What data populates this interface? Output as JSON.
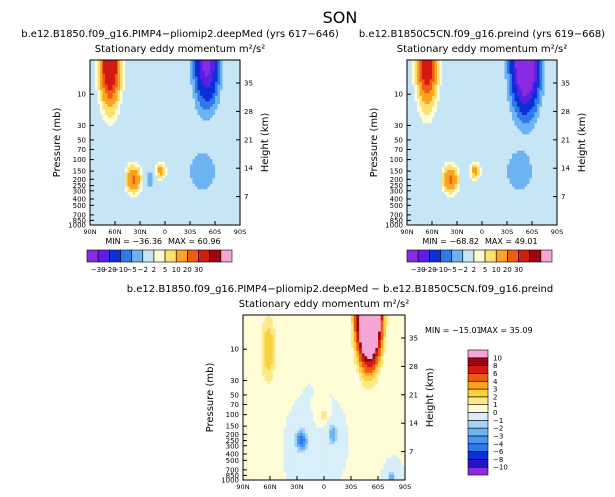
{
  "figure": {
    "title": "SON"
  },
  "colors": {
    "frame": "#000000",
    "text": "#000000"
  },
  "chart_data": [
    {
      "type": "heatmap",
      "title": "b.e12.B1850.f09_g16.PIMP4−pliomip2.deepMed (yrs 617−646)",
      "subtitle": "Stationary eddy momentum",
      "units": "m²/s²",
      "ylabel": "Pressure (mb)",
      "ylabel_right": "Height (km)",
      "x_ticks": [
        "90N",
        "60N",
        "30N",
        "0",
        "30S",
        "60S",
        "90S"
      ],
      "y_ticks": [
        "10",
        "30",
        "50",
        "70",
        "100",
        "150",
        "200",
        "250",
        "300",
        "400",
        "500",
        "700",
        "850",
        "1000"
      ],
      "height_ticks": [
        "35",
        "28",
        "21",
        "14",
        "7"
      ],
      "min_label": "MIN = −36.36",
      "max_label": "MAX = 60.96",
      "levels": [
        -30,
        -20,
        -10,
        -5,
        -2,
        2,
        5,
        10,
        20,
        30
      ],
      "level_labels": [
        "−30",
        "−20",
        "−10",
        "−5",
        "−2",
        "2",
        "5",
        "10",
        "20",
        "30"
      ],
      "colormap": [
        "#8a2be2",
        "#5a1ee6",
        "#0b2fd6",
        "#2f78ea",
        "#6cb3f2",
        "#c6e6f6",
        "#fffcd6",
        "#fde072",
        "#f9a31e",
        "#ef5a14",
        "#d21a12",
        "#9c0610",
        "#f4a6d4"
      ],
      "ylim_mb": [
        1000,
        3
      ],
      "features": [
        {
          "lat": 66,
          "p": 3,
          "amp": 60,
          "width_lat": 10,
          "width_logp": 0.55
        },
        {
          "lat": -50,
          "p": 3,
          "amp": -36,
          "width_lat": 12,
          "width_logp": 0.55
        },
        {
          "lat": 38,
          "p": 200,
          "amp": 22,
          "width_lat": 8,
          "width_logp": 0.18
        },
        {
          "lat": 5,
          "p": 150,
          "amp": 15,
          "width_lat": 5,
          "width_logp": 0.1
        },
        {
          "lat": -45,
          "p": 150,
          "amp": -5,
          "width_lat": 15,
          "width_logp": 0.3
        },
        {
          "lat": 18,
          "p": 200,
          "amp": -3,
          "width_lat": 5,
          "width_logp": 0.2
        },
        {
          "lat": 55,
          "p": 200,
          "amp": -2,
          "width_lat": 6,
          "width_logp": 0.25
        }
      ]
    },
    {
      "type": "heatmap",
      "title": "b.e12.B1850C5CN.f09_g16.preind (yrs 619−668)",
      "subtitle": "Stationary eddy momentum",
      "units": "m²/s²",
      "ylabel": "Pressure (mb)",
      "ylabel_right": "Height (km)",
      "x_ticks": [
        "90N",
        "60N",
        "30N",
        "0",
        "30S",
        "60S",
        "90S"
      ],
      "y_ticks": [
        "10",
        "30",
        "50",
        "70",
        "100",
        "150",
        "200",
        "250",
        "300",
        "400",
        "500",
        "700",
        "850",
        "1000"
      ],
      "height_ticks": [
        "35",
        "28",
        "21",
        "14",
        "7"
      ],
      "min_label": "MIN = −68.82",
      "max_label": "MAX = 49.01",
      "levels": [
        -30,
        -20,
        -10,
        -5,
        -2,
        2,
        5,
        10,
        20,
        30
      ],
      "level_labels": [
        "−30",
        "−20",
        "−10",
        "−5",
        "−2",
        "2",
        "5",
        "10",
        "20",
        "30"
      ],
      "colormap": [
        "#8a2be2",
        "#5a1ee6",
        "#0b2fd6",
        "#2f78ea",
        "#6cb3f2",
        "#c6e6f6",
        "#fffcd6",
        "#fde072",
        "#f9a31e",
        "#ef5a14",
        "#d21a12",
        "#9c0610",
        "#f4a6d4"
      ],
      "ylim_mb": [
        1000,
        3
      ],
      "features": [
        {
          "lat": 66,
          "p": 3,
          "amp": 49,
          "width_lat": 10,
          "width_logp": 0.55
        },
        {
          "lat": -52,
          "p": 3,
          "amp": -68,
          "width_lat": 13,
          "width_logp": 0.6
        },
        {
          "lat": 38,
          "p": 200,
          "amp": 22,
          "width_lat": 8,
          "width_logp": 0.18
        },
        {
          "lat": 8,
          "p": 150,
          "amp": 15,
          "width_lat": 5,
          "width_logp": 0.1
        },
        {
          "lat": -45,
          "p": 150,
          "amp": -5,
          "width_lat": 15,
          "width_logp": 0.3
        },
        {
          "lat": 55,
          "p": 200,
          "amp": -2,
          "width_lat": 6,
          "width_logp": 0.25
        }
      ]
    },
    {
      "type": "heatmap",
      "title": "b.e12.B1850.f09_g16.PIMP4−pliomip2.deepMed − b.e12.B1850C5CN.f09_g16.preind",
      "subtitle": "Stationary eddy momentum",
      "units": "m²/s²",
      "ylabel": "Pressure (mb)",
      "ylabel_right": "Height (km)",
      "x_ticks": [
        "90N",
        "60N",
        "30N",
        "0",
        "30S",
        "60S",
        "90S"
      ],
      "y_ticks": [
        "10",
        "30",
        "50",
        "70",
        "100",
        "150",
        "200",
        "250",
        "300",
        "400",
        "500",
        "700",
        "850",
        "1000"
      ],
      "height_ticks": [
        "35",
        "28",
        "21",
        "14",
        "7"
      ],
      "min_label": "MIN = −15.01",
      "max_label": "MAX = 35.09",
      "levels": [
        -10,
        -8,
        -6,
        -4,
        -3,
        -2,
        -1,
        0,
        1,
        2,
        3,
        4,
        6,
        8,
        10
      ],
      "level_labels": [
        "−10",
        "−8",
        "−6",
        "−4",
        "−3",
        "−2",
        "−1",
        "0",
        "1",
        "2",
        "3",
        "4",
        "6",
        "8",
        "10"
      ],
      "colormap": [
        "#8a2be2",
        "#2a12c8",
        "#0b2fd6",
        "#2f78ea",
        "#4a98ee",
        "#6cb3f2",
        "#a4d4f4",
        "#d8eef8",
        "#fffcd6",
        "#fde98a",
        "#fbd03c",
        "#f9a31e",
        "#ef5a14",
        "#d21a12",
        "#9c0610",
        "#f4a6d4"
      ],
      "ylim_mb": [
        1000,
        3
      ],
      "features": [
        {
          "lat": -50,
          "p": 3,
          "amp": 35,
          "width_lat": 11,
          "width_logp": 0.6
        },
        {
          "lat": 62,
          "p": 10,
          "amp": 3,
          "width_lat": 8,
          "width_logp": 0.5
        },
        {
          "lat": 25,
          "p": 250,
          "amp": -5,
          "width_lat": 6,
          "width_logp": 0.15
        },
        {
          "lat": -10,
          "p": 200,
          "amp": -3,
          "width_lat": 5,
          "width_logp": 0.15
        },
        {
          "lat": 0,
          "p": 100,
          "amp": 2,
          "width_lat": 4,
          "width_logp": 0.08
        },
        {
          "lat": -75,
          "p": 900,
          "amp": -3,
          "width_lat": 3,
          "width_logp": 0.08
        }
      ]
    }
  ]
}
